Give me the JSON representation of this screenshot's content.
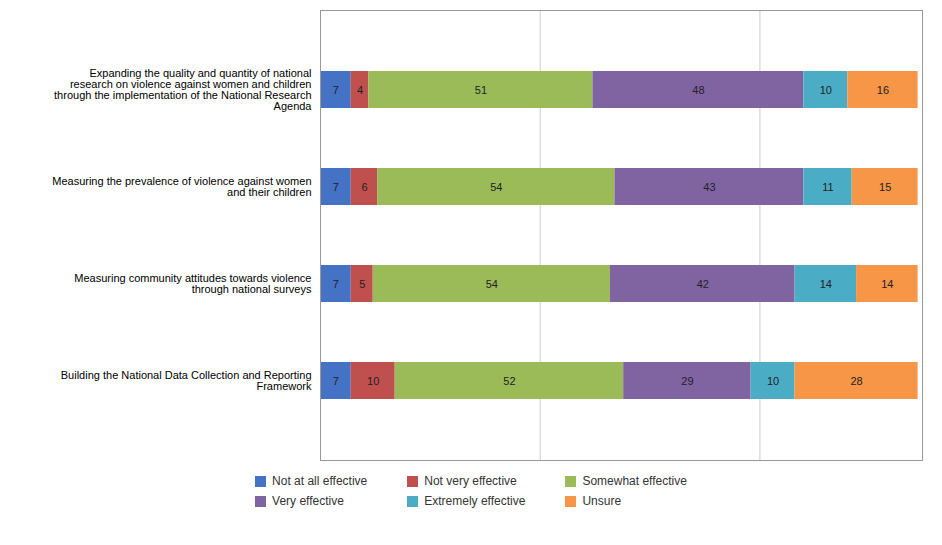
{
  "chart_data": {
    "type": "bar",
    "orientation": "horizontal",
    "stacked": true,
    "data_labels": true,
    "categories": [
      "Expanding the quality and quantity of national\nresearch on violence against women and children\nthrough the implementation of the National Research\nAgenda",
      "Measuring the prevalence of violence against women\nand their children",
      "Measuring community attitudes towards violence\nthrough national surveys",
      "Building the National Data Collection and Reporting\nFramework"
    ],
    "series": [
      {
        "name": "Not at all effective",
        "color": "#4472C4",
        "values": [
          7,
          7,
          7,
          7
        ]
      },
      {
        "name": "Not very effective",
        "color": "#C0504D",
        "values": [
          4,
          6,
          5,
          10
        ]
      },
      {
        "name": "Somewhat effective",
        "color": "#9BBB59",
        "values": [
          51,
          54,
          54,
          52
        ]
      },
      {
        "name": "Very effective",
        "color": "#8064A2",
        "values": [
          48,
          43,
          42,
          29
        ]
      },
      {
        "name": "Extremely effective",
        "color": "#4BACC6",
        "values": [
          10,
          11,
          14,
          10
        ]
      },
      {
        "name": "Unsure",
        "color": "#F79646",
        "values": [
          16,
          15,
          14,
          28
        ]
      }
    ],
    "xlim": [
      0,
      137
    ],
    "xticks": [
      50,
      100
    ],
    "grid": true,
    "tick_labels": "y",
    "legend": "bottom"
  }
}
